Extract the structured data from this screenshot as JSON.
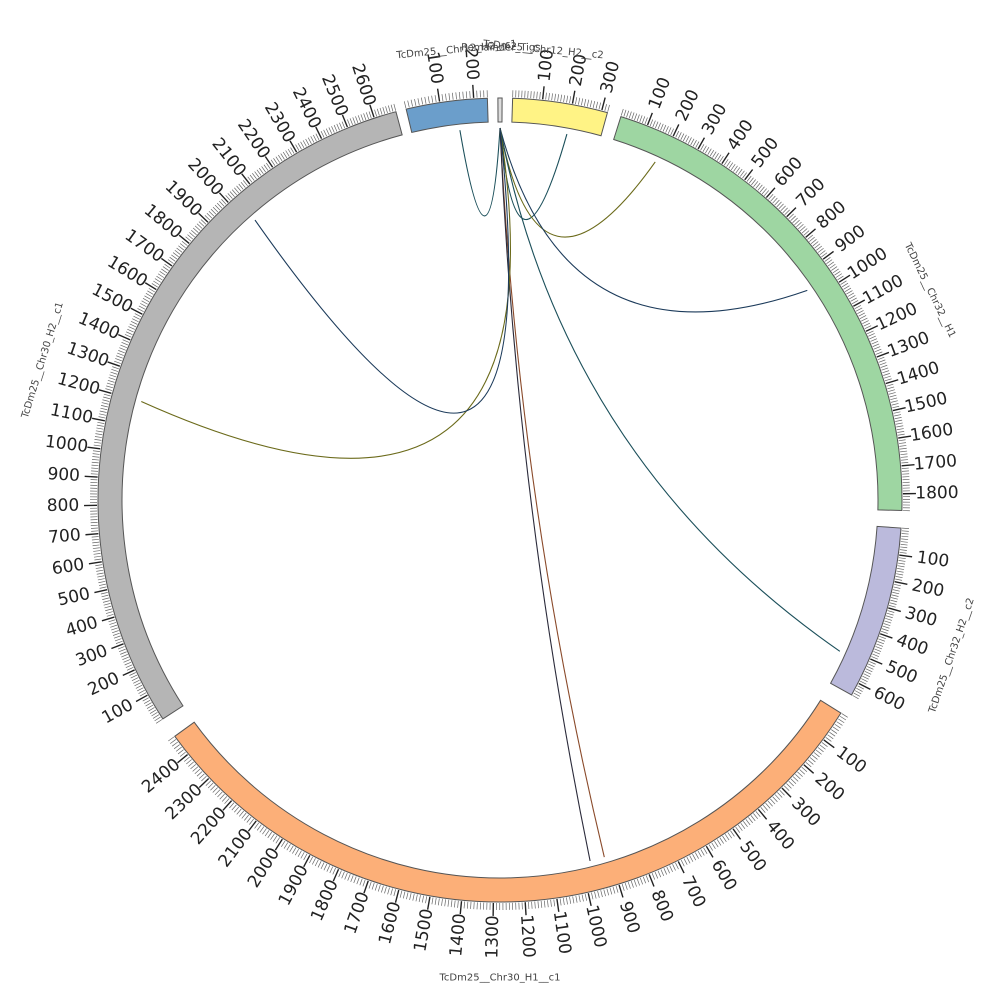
{
  "chromosomes": [
    {
      "id": "c12h2c1",
      "label": "TcDm25__Chr12_H2__c1",
      "color": "#6b9ecb",
      "length": 240,
      "label_ticks": true
    },
    {
      "id": "remainder",
      "label": "Remainder_Tigs",
      "color": "#dddddd",
      "length": 1,
      "label_ticks": false
    },
    {
      "id": "c12h2c2",
      "label": "TcDm25__Chr12_H2__c2",
      "color": "#fff385",
      "length": 320,
      "label_ticks": true
    },
    {
      "id": "c32h1",
      "label": "TcDm25__Chr32__H1",
      "color": "#9ed6a2",
      "length": 1860,
      "label_ticks": true
    },
    {
      "id": "c32h2c2",
      "label": "TcDm25__Chr32_H2__c2",
      "color": "#bbbadc",
      "length": 650,
      "label_ticks": true
    },
    {
      "id": "c30h1c1",
      "label": "TcDm25__Chr30_H1__c1",
      "color": "#fcaf78",
      "length": 2470,
      "label_ticks": true
    },
    {
      "id": "c30h2c1",
      "label": "TcDm25__Chr30_H2__c1",
      "color": "#b5b5b5",
      "length": 2680,
      "label_ticks": true
    }
  ],
  "links": [
    {
      "a": "remainder",
      "a_pos": 0.5,
      "b": "c12h2c1",
      "b_pos": 150,
      "color": "#1b4f5a"
    },
    {
      "a": "remainder",
      "a_pos": 0.5,
      "b": "c12h2c2",
      "b_pos": 200,
      "color": "#1b4f5a"
    },
    {
      "a": "remainder",
      "a_pos": 0.5,
      "b": "c32h1",
      "b_pos": 180,
      "color": "#6b6a1a"
    },
    {
      "a": "remainder",
      "a_pos": 0.5,
      "b": "c32h1",
      "b_pos": 960,
      "color": "#1b3a5a"
    },
    {
      "a": "remainder",
      "a_pos": 0.5,
      "b": "c32h2c2",
      "b_pos": 520,
      "color": "#1b4f5a"
    },
    {
      "a": "remainder",
      "a_pos": 0.5,
      "b": "c30h1c1",
      "b_pos": 920,
      "color": "#8a4a2a"
    },
    {
      "a": "remainder",
      "a_pos": 0.5,
      "b": "c30h1c1",
      "b_pos": 970,
      "color": "#2a2a3a"
    },
    {
      "a": "remainder",
      "a_pos": 0.5,
      "b": "c30h2c1",
      "b_pos": 1200,
      "color": "#6b6a1a"
    },
    {
      "a": "remainder",
      "a_pos": 0.5,
      "b": "c30h2c1",
      "b_pos": 2030,
      "color": "#1b3a5a"
    }
  ]
}
